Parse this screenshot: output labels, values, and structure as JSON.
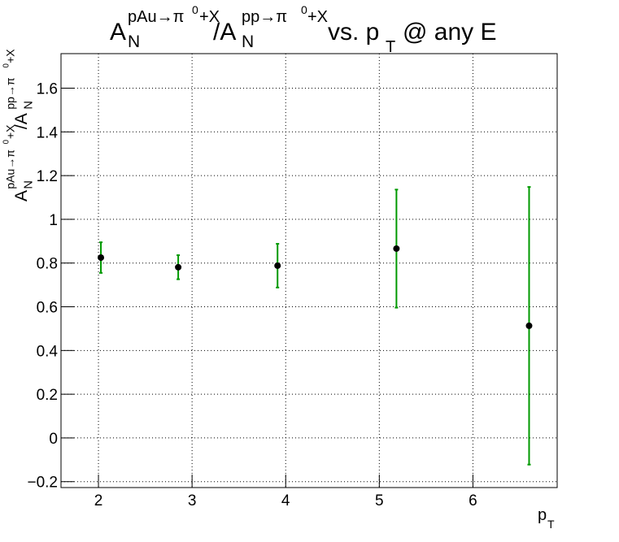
{
  "chart_data": {
    "type": "errorbar",
    "title": [
      "A",
      "N",
      "pAu→π",
      "0",
      "+X",
      "/A",
      "N",
      "pp→π",
      "0",
      "+X",
      "vs. p",
      "T",
      "@ any E"
    ],
    "y_label": [
      "A",
      "N",
      "pAu→π",
      "0",
      "+X",
      "/A",
      "N",
      "pp→π",
      "0",
      "+X"
    ],
    "x_label": [
      "p",
      "T"
    ],
    "x": [
      2.026,
      2.852,
      3.913,
      5.183,
      6.6
    ],
    "values": [
      0.825,
      0.781,
      0.788,
      0.866,
      0.513
    ],
    "errors": [
      0.07,
      0.055,
      0.1,
      0.27,
      0.635
    ],
    "color": "#000000",
    "error_color": "#009900",
    "xlim": [
      1.6,
      6.9
    ],
    "ylim": [
      -0.227,
      1.758
    ],
    "xticks": [
      2,
      3,
      4,
      5,
      6
    ],
    "yticks": [
      {
        "value": -0.2,
        "label": "−0.2"
      },
      0,
      0.2,
      0.4,
      0.6,
      0.8,
      1,
      1.2,
      1.4,
      1.6
    ],
    "grid": true
  }
}
